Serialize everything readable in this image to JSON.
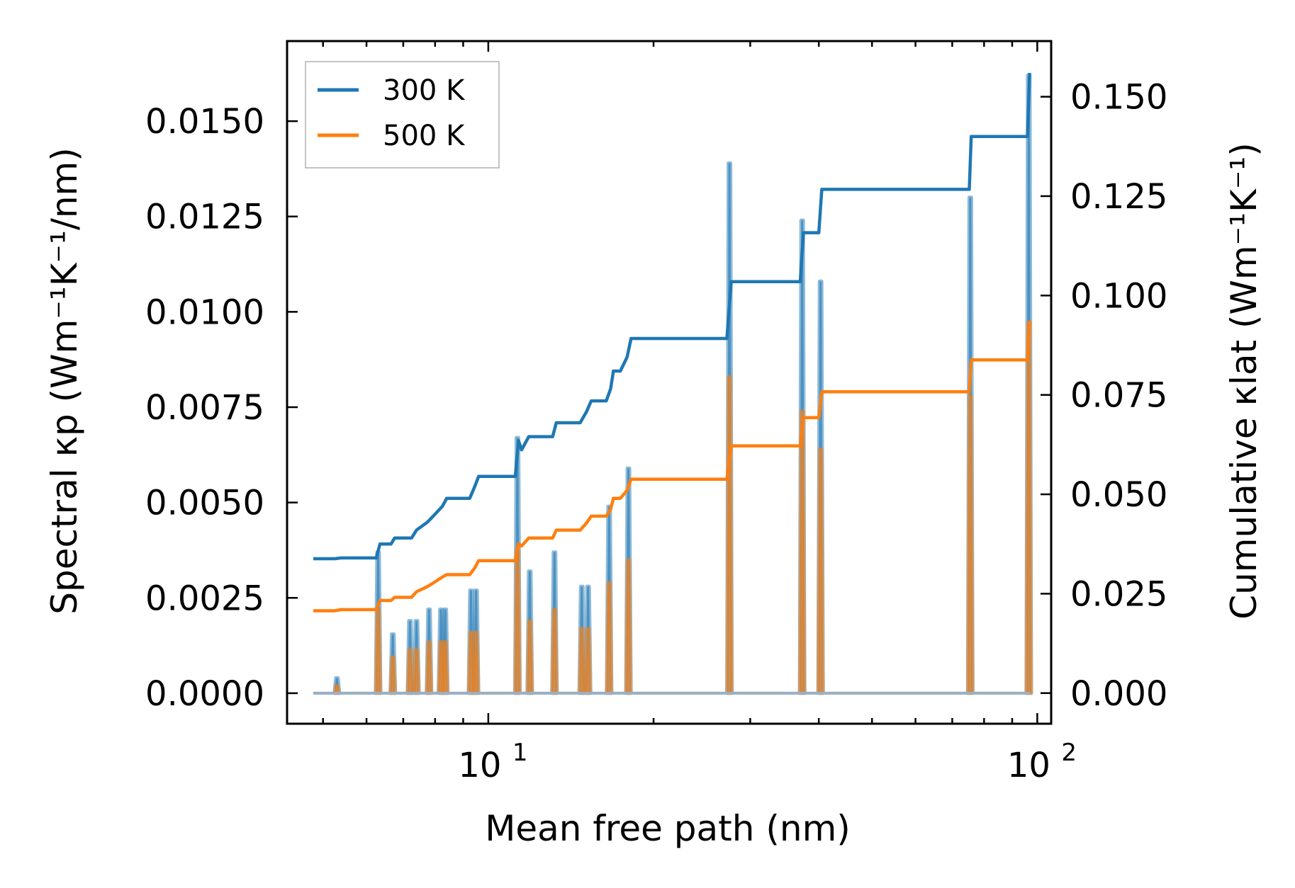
{
  "chart_data": {
    "type": "line",
    "title": "",
    "xlabel": "Mean free path (nm)",
    "ylabel_left": "Spectral κp (Wm⁻¹K⁻¹/nm)",
    "ylabel_right": "Cumulative κlat (Wm⁻¹K⁻¹)",
    "xscale": "log",
    "xlim": [
      4.3,
      106
    ],
    "ylim_left": [
      -0.0008,
      0.0171
    ],
    "ylim_right": [
      -0.0077,
      0.164
    ],
    "x_ticks": [
      {
        "value": 10,
        "base": "10",
        "exp": "1"
      },
      {
        "value": 100,
        "base": "10",
        "exp": "2"
      }
    ],
    "y_ticks_left": [
      {
        "value": 0,
        "label": "0.0000"
      },
      {
        "value": 0.0025,
        "label": "0.0025"
      },
      {
        "value": 0.005,
        "label": "0.0050"
      },
      {
        "value": 0.0075,
        "label": "0.0075"
      },
      {
        "value": 0.01,
        "label": "0.0100"
      },
      {
        "value": 0.0125,
        "label": "0.0125"
      },
      {
        "value": 0.015,
        "label": "0.0150"
      }
    ],
    "y_ticks_right": [
      {
        "value": 0,
        "label": "0.000"
      },
      {
        "value": 0.025,
        "label": "0.025"
      },
      {
        "value": 0.05,
        "label": "0.050"
      },
      {
        "value": 0.075,
        "label": "0.075"
      },
      {
        "value": 0.1,
        "label": "0.100"
      },
      {
        "value": 0.125,
        "label": "0.125"
      },
      {
        "value": 0.15,
        "label": "0.150"
      }
    ],
    "x_range": [
      4.8,
      97
    ],
    "legend": {
      "position": "top-left",
      "entries": [
        "300 K",
        "500 K"
      ]
    },
    "series": [
      {
        "name": "300 K",
        "color": "#1f77b4",
        "spectral_peaks": [
          [
            5.3,
            0.0004
          ],
          [
            6.3,
            0.0037
          ],
          [
            6.7,
            0.00155
          ],
          [
            7.2,
            0.0019
          ],
          [
            7.4,
            0.0019
          ],
          [
            7.8,
            0.0022
          ],
          [
            8.2,
            0.0022
          ],
          [
            8.35,
            0.0022
          ],
          [
            9.3,
            0.0027
          ],
          [
            9.5,
            0.0027
          ],
          [
            11.3,
            0.0067
          ],
          [
            11.9,
            0.0032
          ],
          [
            13.2,
            0.0037
          ],
          [
            14.8,
            0.0028
          ],
          [
            15.2,
            0.0028
          ],
          [
            16.6,
            0.0049
          ],
          [
            18.0,
            0.0059
          ],
          [
            27.5,
            0.0139
          ],
          [
            37.3,
            0.0124
          ],
          [
            40.3,
            0.0108
          ],
          [
            75.5,
            0.013
          ],
          [
            96.5,
            0.0162
          ]
        ],
        "cumulative": [
          [
            4.8,
            0.0338
          ],
          [
            5.25,
            0.0338
          ],
          [
            5.4,
            0.034
          ],
          [
            6.25,
            0.034
          ],
          [
            6.35,
            0.0375
          ],
          [
            6.65,
            0.0375
          ],
          [
            6.75,
            0.039
          ],
          [
            7.25,
            0.039
          ],
          [
            7.4,
            0.041
          ],
          [
            7.75,
            0.043
          ],
          [
            8.0,
            0.045
          ],
          [
            8.25,
            0.047
          ],
          [
            8.4,
            0.049
          ],
          [
            9.25,
            0.049
          ],
          [
            9.45,
            0.052
          ],
          [
            9.6,
            0.0545
          ],
          [
            11.2,
            0.0545
          ],
          [
            11.35,
            0.0635
          ],
          [
            11.5,
            0.0612
          ],
          [
            11.85,
            0.0645
          ],
          [
            13.1,
            0.0645
          ],
          [
            13.3,
            0.068
          ],
          [
            14.7,
            0.068
          ],
          [
            15.1,
            0.0708
          ],
          [
            15.4,
            0.0735
          ],
          [
            16.4,
            0.0735
          ],
          [
            16.7,
            0.0765
          ],
          [
            16.9,
            0.081
          ],
          [
            17.4,
            0.081
          ],
          [
            17.9,
            0.0845
          ],
          [
            18.2,
            0.0892
          ],
          [
            27.2,
            0.0892
          ],
          [
            27.7,
            0.1035
          ],
          [
            37.0,
            0.1035
          ],
          [
            37.5,
            0.1158
          ],
          [
            40.0,
            0.1158
          ],
          [
            40.5,
            0.1267
          ],
          [
            75.2,
            0.1267
          ],
          [
            75.8,
            0.14
          ],
          [
            96.0,
            0.14
          ],
          [
            96.8,
            0.156
          ]
        ]
      },
      {
        "name": "500 K",
        "color": "#ff7f0e",
        "spectral_peaks": [
          [
            5.3,
            0.0002
          ],
          [
            6.3,
            0.0022
          ],
          [
            6.7,
            0.00095
          ],
          [
            7.2,
            0.00115
          ],
          [
            7.4,
            0.00115
          ],
          [
            7.8,
            0.00135
          ],
          [
            8.2,
            0.00135
          ],
          [
            8.35,
            0.00135
          ],
          [
            9.3,
            0.0016
          ],
          [
            9.5,
            0.0016
          ],
          [
            11.3,
            0.0038
          ],
          [
            11.9,
            0.0019
          ],
          [
            13.2,
            0.0022
          ],
          [
            14.8,
            0.0017
          ],
          [
            15.2,
            0.0017
          ],
          [
            16.6,
            0.0029
          ],
          [
            18.0,
            0.0035
          ],
          [
            27.5,
            0.0083
          ],
          [
            37.3,
            0.0074
          ],
          [
            40.3,
            0.0064
          ],
          [
            75.5,
            0.0078
          ],
          [
            96.5,
            0.0097
          ]
        ],
        "cumulative": [
          [
            4.8,
            0.0207
          ],
          [
            5.25,
            0.0207
          ],
          [
            5.4,
            0.021
          ],
          [
            6.25,
            0.021
          ],
          [
            6.35,
            0.0233
          ],
          [
            6.65,
            0.0233
          ],
          [
            6.75,
            0.0241
          ],
          [
            7.25,
            0.0241
          ],
          [
            7.4,
            0.0255
          ],
          [
            7.75,
            0.0268
          ],
          [
            8.0,
            0.028
          ],
          [
            8.25,
            0.0292
          ],
          [
            8.4,
            0.0298
          ],
          [
            9.25,
            0.0298
          ],
          [
            9.45,
            0.0315
          ],
          [
            9.6,
            0.0333
          ],
          [
            11.2,
            0.0333
          ],
          [
            11.35,
            0.0376
          ],
          [
            11.5,
            0.037
          ],
          [
            11.85,
            0.039
          ],
          [
            13.1,
            0.039
          ],
          [
            13.3,
            0.041
          ],
          [
            14.7,
            0.041
          ],
          [
            15.1,
            0.0428
          ],
          [
            15.4,
            0.0445
          ],
          [
            16.4,
            0.0445
          ],
          [
            16.7,
            0.0462
          ],
          [
            16.9,
            0.049
          ],
          [
            17.4,
            0.049
          ],
          [
            17.9,
            0.051
          ],
          [
            18.2,
            0.0538
          ],
          [
            27.2,
            0.0538
          ],
          [
            27.7,
            0.0622
          ],
          [
            37.0,
            0.0622
          ],
          [
            37.5,
            0.0693
          ],
          [
            40.0,
            0.0693
          ],
          [
            40.5,
            0.0758
          ],
          [
            75.2,
            0.0758
          ],
          [
            75.8,
            0.0838
          ],
          [
            96.0,
            0.0838
          ],
          [
            96.8,
            0.0937
          ]
        ]
      }
    ]
  }
}
